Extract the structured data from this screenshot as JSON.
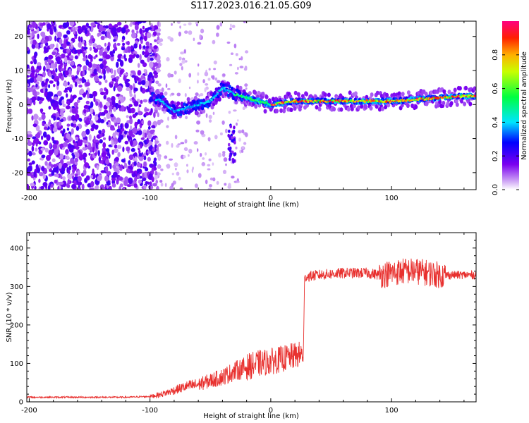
{
  "title": "S117.2023.016.21.05.G09",
  "colors": {
    "snr_line": "#e8302e",
    "axis": "#000000",
    "grid": "#d0d0d0"
  },
  "chart_data": [
    {
      "type": "heatmap",
      "xlabel": "Height of straight line (km)",
      "ylabel": "Frequency (Hz)",
      "xlim": [
        -202,
        170
      ],
      "ylim": [
        -25,
        24.5
      ],
      "x_ticks": [
        -200,
        -100,
        0,
        100
      ],
      "y_ticks": [
        -20,
        -10,
        0,
        10,
        20
      ],
      "colorbar": {
        "label": "Normalized spectral amplitude",
        "range": [
          0,
          1
        ],
        "ticks": [
          0.0,
          0.2,
          0.4,
          0.6,
          0.8
        ],
        "tick_labels": [
          "0.0",
          "0.2",
          "0.4",
          "0.6",
          "0.8"
        ]
      },
      "dominant_frequency_track": {
        "x": [
          -100,
          -90,
          -80,
          -70,
          -60,
          -50,
          -40,
          -30,
          -20,
          -10,
          0,
          20,
          40,
          60,
          80,
          100,
          120,
          140,
          160,
          170
        ],
        "y": [
          2,
          1,
          -2,
          -1,
          0,
          1,
          5,
          3,
          2,
          1,
          0,
          1,
          1,
          1,
          1,
          1,
          1.5,
          2,
          2.5,
          2.5
        ]
      }
    },
    {
      "type": "line",
      "xlabel": "Height of straight line (km)",
      "ylabel": "SNR (10 * v/v)",
      "xlim": [
        -202,
        170
      ],
      "ylim": [
        0,
        440
      ],
      "x_ticks": [
        -200,
        -100,
        0,
        100
      ],
      "y_ticks": [
        0,
        100,
        200,
        300,
        400
      ],
      "series": [
        {
          "x": [
            -202,
            -180,
            -160,
            -140,
            -120,
            -100,
            -90,
            -80,
            -70,
            -60,
            -50,
            -40,
            -30,
            -20,
            -10,
            0,
            10,
            20,
            27,
            28,
            40,
            60,
            80,
            90,
            100,
            110,
            120,
            130,
            140,
            150,
            160,
            170
          ],
          "values": [
            12,
            12,
            12,
            12,
            12,
            14,
            20,
            30,
            40,
            45,
            55,
            65,
            80,
            90,
            100,
            105,
            112,
            120,
            125,
            325,
            330,
            335,
            335,
            330,
            335,
            340,
            340,
            335,
            330,
            330,
            330,
            330
          ]
        }
      ]
    }
  ]
}
